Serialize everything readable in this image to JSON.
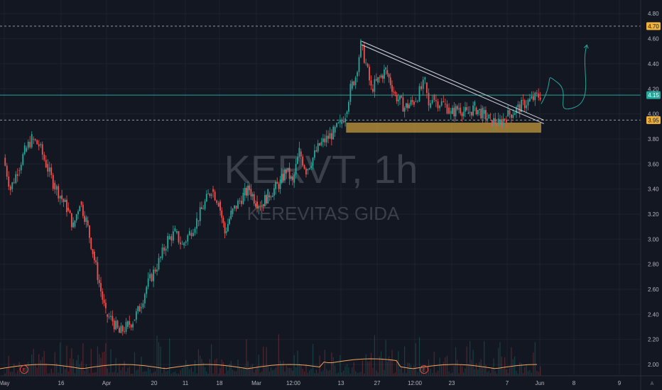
{
  "watermark": {
    "ticker": "KERVT, 1h",
    "name": "KEREVITAS GIDA"
  },
  "colors": {
    "background": "#131722",
    "up": "#26a69a",
    "down": "#ef5350",
    "grid": "#1e222d",
    "axis_text": "#b2b5be",
    "level_line": "#9598a1",
    "current_line": "#26a69a",
    "support_zone": "#b8913a",
    "projection": "#26a69a",
    "trendline": "#d1d4dc",
    "volume_ma": "#f0a55d",
    "event_marker": "#e0483e",
    "tag_4_70_bg": "#f0b23c",
    "tag_4_15_bg": "#26a69a",
    "tag_3_95_bg": "#f0b23c"
  },
  "price_tags": [
    {
      "value": 4.7,
      "label": "4.70",
      "style": "dashed",
      "bg": "#f0b23c",
      "fg": "#131722"
    },
    {
      "value": 4.15,
      "label": "4.15",
      "style": "solid",
      "bg": "#26a69a",
      "fg": "#ffffff"
    },
    {
      "value": 3.95,
      "label": "3.95",
      "style": "dashed",
      "bg": "#f0b23c",
      "fg": "#131722"
    }
  ],
  "events": [
    {
      "label": "E",
      "x_label": "Mar 2 area"
    },
    {
      "label": "E",
      "x_label": "May 6 area"
    }
  ],
  "chart_data": {
    "type": "candlestick",
    "title": "KERVT, 1h",
    "subtitle": "KEREVITAS GIDA",
    "y_ticks": [
      2.0,
      2.2,
      2.4,
      2.6,
      2.8,
      3.0,
      3.2,
      3.4,
      3.6,
      3.8,
      4.0,
      4.2,
      4.4,
      4.6,
      4.8
    ],
    "ylim": [
      1.96,
      4.9
    ],
    "x_ticks": [
      "Mar",
      "9",
      "16",
      "23",
      "12:00",
      "Apr",
      "7",
      "13",
      "20",
      "27",
      "May",
      "11",
      "18",
      "12:00",
      "Jun",
      "8"
    ],
    "path_points": [
      {
        "d": "Mar 1",
        "p": 3.65
      },
      {
        "d": "Mar 2",
        "p": 3.4
      },
      {
        "d": "Mar 3",
        "p": 3.55
      },
      {
        "d": "Mar 4",
        "p": 3.7
      },
      {
        "d": "Mar 5",
        "p": 3.8
      },
      {
        "d": "Mar 6",
        "p": 3.75
      },
      {
        "d": "Mar 7",
        "p": 3.6
      },
      {
        "d": "Mar 8",
        "p": 3.45
      },
      {
        "d": "Mar 9",
        "p": 3.35
      },
      {
        "d": "Mar 10",
        "p": 3.25
      },
      {
        "d": "Mar 11",
        "p": 3.1
      },
      {
        "d": "Mar 12",
        "p": 3.3
      },
      {
        "d": "Mar 13",
        "p": 3.15
      },
      {
        "d": "Mar 14",
        "p": 2.9
      },
      {
        "d": "Mar 15",
        "p": 2.65
      },
      {
        "d": "Mar 16",
        "p": 2.4
      },
      {
        "d": "Mar 17",
        "p": 2.35
      },
      {
        "d": "Mar 18",
        "p": 2.25
      },
      {
        "d": "Mar 19",
        "p": 2.3
      },
      {
        "d": "Mar 20",
        "p": 2.35
      },
      {
        "d": "Mar 21",
        "p": 2.45
      },
      {
        "d": "Mar 22",
        "p": 2.62
      },
      {
        "d": "Mar 24",
        "p": 2.85
      },
      {
        "d": "Mar 25",
        "p": 3.0
      },
      {
        "d": "Mar 26",
        "p": 3.05
      },
      {
        "d": "Mar 27",
        "p": 2.95
      },
      {
        "d": "Mar 28",
        "p": 3.05
      },
      {
        "d": "Mar 29",
        "p": 3.15
      },
      {
        "d": "Mar 31",
        "p": 3.4
      },
      {
        "d": "Apr 1",
        "p": 3.3
      },
      {
        "d": "Apr 2",
        "p": 3.05
      },
      {
        "d": "Apr 3",
        "p": 3.2
      },
      {
        "d": "Apr 5",
        "p": 3.35
      },
      {
        "d": "Apr 6",
        "p": 3.4
      },
      {
        "d": "Apr 7",
        "p": 3.3
      },
      {
        "d": "Apr 8",
        "p": 3.28
      },
      {
        "d": "Apr 9",
        "p": 3.35
      },
      {
        "d": "Apr 10",
        "p": 3.4
      },
      {
        "d": "Apr 11",
        "p": 3.45
      },
      {
        "d": "Apr 12",
        "p": 3.55
      },
      {
        "d": "Apr 13",
        "p": 3.45
      },
      {
        "d": "Apr 14",
        "p": 3.7
      },
      {
        "d": "Apr 15",
        "p": 3.55
      },
      {
        "d": "Apr 16",
        "p": 3.65
      },
      {
        "d": "Apr 17",
        "p": 3.75
      },
      {
        "d": "Apr 19",
        "p": 3.85
      },
      {
        "d": "Apr 20",
        "p": 3.92
      },
      {
        "d": "Apr 21",
        "p": 4.0
      },
      {
        "d": "Apr 22",
        "p": 4.2
      },
      {
        "d": "Apr 23",
        "p": 4.3
      },
      {
        "d": "Apr 24",
        "p": 4.55
      },
      {
        "d": "Apr 25",
        "p": 4.4
      },
      {
        "d": "Apr 26",
        "p": 4.2
      },
      {
        "d": "Apr 27",
        "p": 4.25
      },
      {
        "d": "Apr 28",
        "p": 4.35
      },
      {
        "d": "Apr 29",
        "p": 4.15
      },
      {
        "d": "Apr 30",
        "p": 4.05
      },
      {
        "d": "May 1",
        "p": 4.1
      },
      {
        "d": "May 3",
        "p": 4.2
      },
      {
        "d": "May 4",
        "p": 4.25
      },
      {
        "d": "May 5",
        "p": 4.05
      },
      {
        "d": "May 6",
        "p": 4.15
      },
      {
        "d": "May 7",
        "p": 4.1
      },
      {
        "d": "May 9",
        "p": 4.08
      },
      {
        "d": "May 10",
        "p": 4.05
      },
      {
        "d": "May 11",
        "p": 4.0
      },
      {
        "d": "May 12",
        "p": 4.05
      },
      {
        "d": "May 13",
        "p": 4.0
      },
      {
        "d": "May 14",
        "p": 4.05
      },
      {
        "d": "May 15",
        "p": 4.0
      },
      {
        "d": "May 16",
        "p": 3.95
      },
      {
        "d": "May 17",
        "p": 3.92
      },
      {
        "d": "May 18",
        "p": 3.98
      },
      {
        "d": "May 19",
        "p": 4.1
      },
      {
        "d": "May 20",
        "p": 4.15
      }
    ],
    "support_zone": {
      "from_date": "Apr 21",
      "to_date": "May 20",
      "low": 3.85,
      "high": 3.93
    },
    "resistance_trendline": {
      "from": {
        "d": "Apr 24",
        "p": 4.58
      },
      "to": {
        "d": "May 21",
        "p": 3.95
      }
    },
    "projection_path": [
      {
        "d": "May 20",
        "p": 4.08
      },
      {
        "d": "May 26",
        "p": 4.25
      },
      {
        "d": "Jun 1",
        "p": 4.05
      },
      {
        "d": "Jun 3",
        "p": 4.55
      }
    ],
    "volume_ma_level": 0.18,
    "grid": true
  }
}
